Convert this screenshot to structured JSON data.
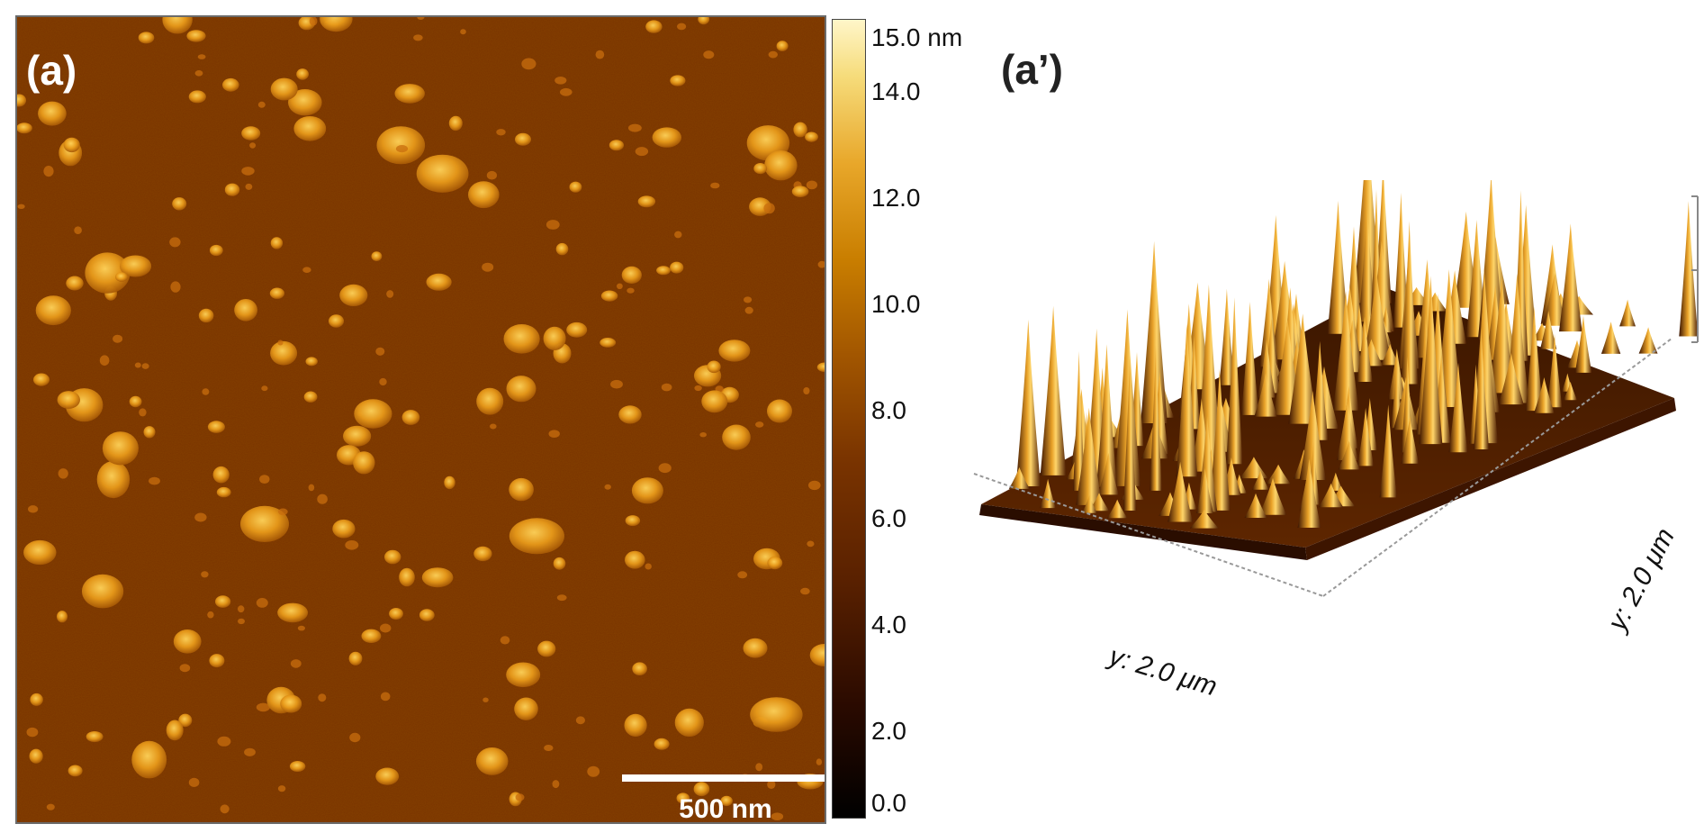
{
  "panel_2d": {
    "label": "(a)",
    "scale_bar_label": "500 nm"
  },
  "colorbar": {
    "ticks": [
      "15.0 nm",
      "14.0",
      "12.0",
      "10.0",
      "8.0",
      "6.0",
      "4.0",
      "2.0",
      "0.0"
    ]
  },
  "panel_3d": {
    "label": "(a’)",
    "x_axis_label": "y: 2.0 μm",
    "y_axis_label": "y: 2.0 μm"
  },
  "colors": {
    "substrate": "#7a3400",
    "particle": "#e89a1a",
    "particle_highlight": "#ffd35a",
    "label_white": "#ffffff"
  }
}
